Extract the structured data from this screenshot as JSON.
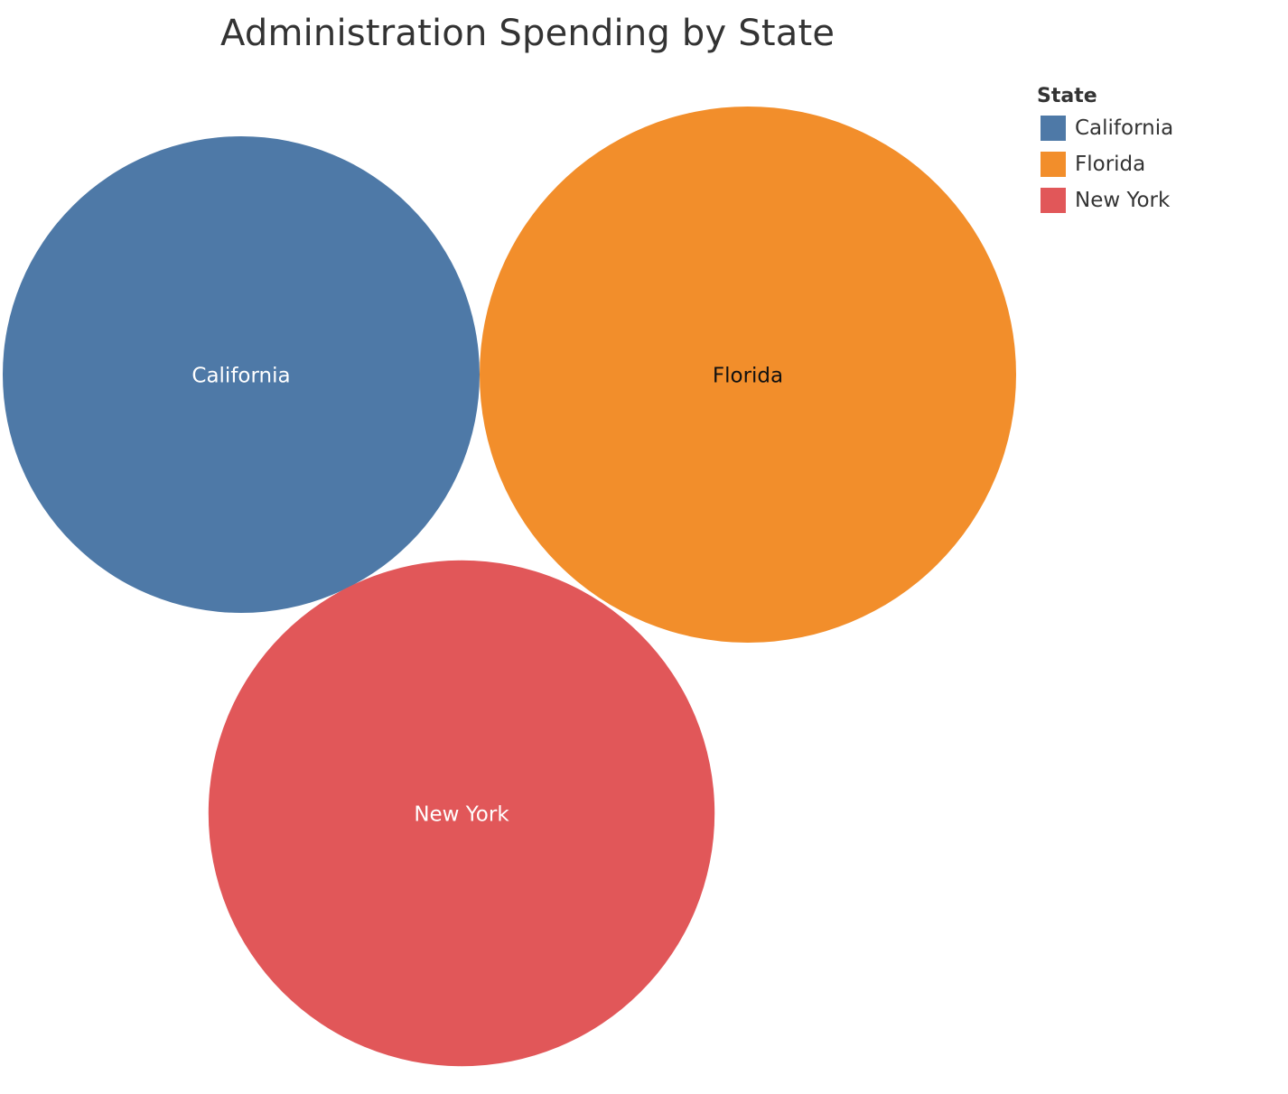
{
  "chart_data": {
    "type": "bubble",
    "title": "Administration Spending by State",
    "legend": {
      "title": "State",
      "placement": "top-right"
    },
    "series": [
      {
        "name": "California",
        "value": 79,
        "color": "#4e79a7",
        "label_color": "#ffffff"
      },
      {
        "name": "Florida",
        "value": 100,
        "color": "#f28e2b",
        "label_color": "#111111"
      },
      {
        "name": "New York",
        "value": 89,
        "color": "#e15759",
        "label_color": "#ffffff"
      }
    ]
  }
}
